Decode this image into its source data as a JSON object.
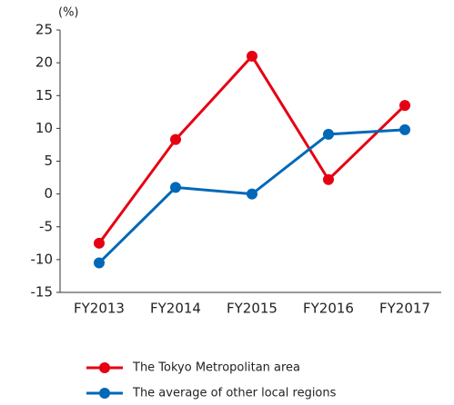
{
  "chart_data": {
    "type": "line",
    "y_label": "(%)",
    "categories": [
      "FY2013",
      "FY2014",
      "FY2015",
      "FY2016",
      "FY2017"
    ],
    "series": [
      {
        "name": "The Tokyo Metropolitan area",
        "color": "#e60012",
        "values": [
          -7.5,
          8.3,
          21,
          2.2,
          13.5
        ]
      },
      {
        "name": "The average of other local regions",
        "color": "#0068b7",
        "values": [
          -10.5,
          1,
          0,
          9.1,
          9.8
        ]
      }
    ],
    "ylim": [
      -15,
      25
    ],
    "yticks": [
      -15,
      -10,
      -5,
      0,
      5,
      10,
      15,
      20,
      25
    ],
    "grid": false,
    "legend": "bottom"
  }
}
